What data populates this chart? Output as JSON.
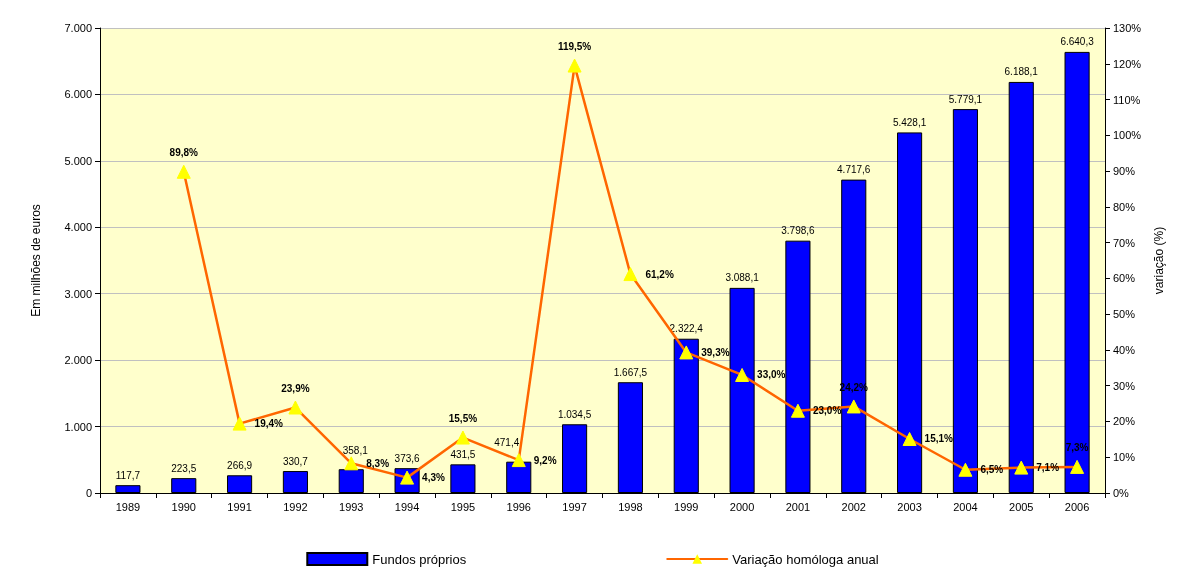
{
  "chart_data": {
    "type": "bar",
    "ylabel": "Em milhões de euros",
    "y2label": "variação (%)",
    "categories": [
      "1989",
      "1990",
      "1991",
      "1992",
      "1993",
      "1994",
      "1995",
      "1996",
      "1997",
      "1998",
      "1999",
      "2000",
      "2001",
      "2002",
      "2003",
      "2004",
      "2005",
      "2006"
    ],
    "series": [
      {
        "name": "Fundos próprios",
        "color": "#0000ff",
        "values": [
          117.7,
          223.5,
          266.9,
          330.7,
          358.1,
          373.6,
          431.5,
          471.4,
          1034.5,
          1667.5,
          2322.4,
          3088.1,
          3798.6,
          4717.6,
          5428.1,
          5779.1,
          6188.1,
          6640.3
        ],
        "value_labels": [
          "117,7",
          "223,5",
          "266,9",
          "330,7",
          "358,1",
          "373,6",
          "431,5",
          "471,4",
          "1.034,5",
          "1.667,5",
          "2.322,4",
          "3.088,1",
          "3.798,6",
          "4.717,6",
          "5.428,1",
          "5.779,1",
          "6.188,1",
          "6.640,3"
        ]
      },
      {
        "name": "Variação homóloga anual",
        "type": "line",
        "axis": "y2",
        "color": "#ff6600",
        "marker": "triangle",
        "values": [
          null,
          89.8,
          19.4,
          23.9,
          8.3,
          4.3,
          15.5,
          9.2,
          119.5,
          61.2,
          39.3,
          33.0,
          23.0,
          24.2,
          15.1,
          6.5,
          7.1,
          7.3
        ],
        "value_labels": [
          null,
          "89,8%",
          "19,4%",
          "23,9%",
          "8,3%",
          "4,3%",
          "15,5%",
          "9,2%",
          "119,5%",
          "61,2%",
          "39,3%",
          "33,0%",
          "23,0%",
          "24,2%",
          "15,1%",
          "6,5%",
          "7,1%",
          "7,3%"
        ]
      }
    ],
    "ylim": [
      0,
      7000
    ],
    "yticks": [
      0,
      {
        "value": 1000,
        "label": "1.000"
      },
      {
        "value": 2000,
        "label": "2.000"
      },
      {
        "value": 3000,
        "label": "3.000"
      },
      {
        "value": 4000,
        "label": "4.000"
      },
      {
        "value": 5000,
        "label": "5.000"
      },
      {
        "value": 6000,
        "label": "6.000"
      },
      {
        "value": 7000,
        "label": "7.000"
      }
    ],
    "y2lim": [
      0,
      130
    ],
    "y2ticks": [
      {
        "value": 0,
        "label": "0%"
      },
      {
        "value": 10,
        "label": "10%"
      },
      {
        "value": 20,
        "label": "20%"
      },
      {
        "value": 30,
        "label": "30%"
      },
      {
        "value": 40,
        "label": "40%"
      },
      {
        "value": 50,
        "label": "50%"
      },
      {
        "value": 60,
        "label": "60%"
      },
      {
        "value": 70,
        "label": "70%"
      },
      {
        "value": 80,
        "label": "80%"
      },
      {
        "value": 90,
        "label": "90%"
      },
      {
        "value": 100,
        "label": "100%"
      },
      {
        "value": 110,
        "label": "110%"
      },
      {
        "value": 120,
        "label": "120%"
      },
      {
        "value": 130,
        "label": "130%"
      }
    ],
    "grid": "y",
    "legend": "bottom"
  }
}
